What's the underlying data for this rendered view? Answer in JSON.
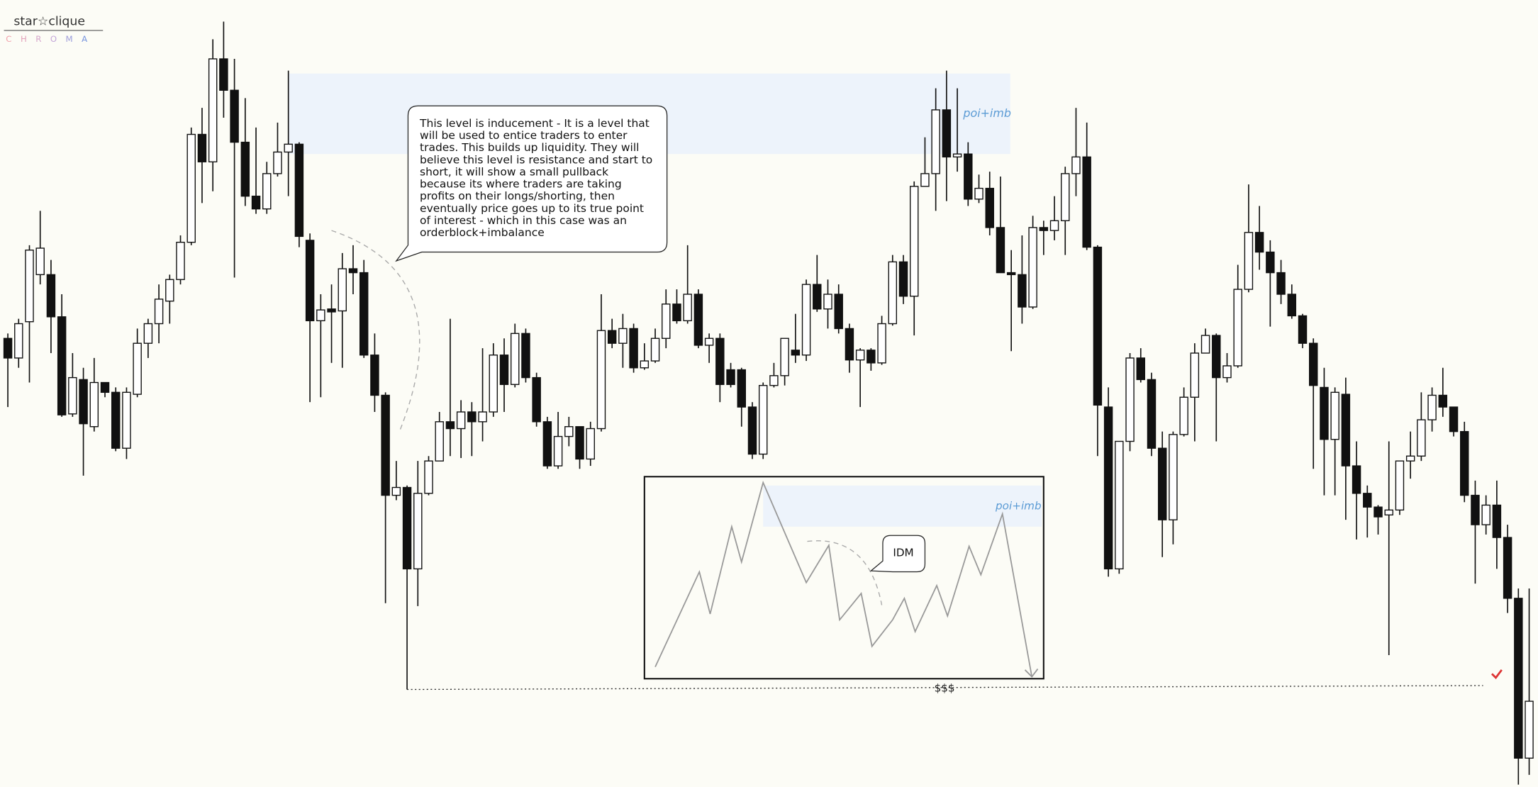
{
  "logo": {
    "name": "star☆clique",
    "sub": "CHROMA"
  },
  "chart_data": {
    "type": "candlestick",
    "ylim": [
      0,
      802
    ],
    "open": [
      457,
      437,
      474,
      522,
      522,
      479,
      380,
      415,
      367,
      412,
      402,
      345,
      400,
      452,
      472,
      495,
      517,
      555,
      665,
      637,
      742,
      710,
      657,
      602,
      589,
      625,
      647,
      655,
      557,
      475,
      487,
      485,
      528,
      524,
      440,
      399,
      297,
      305,
      222,
      299,
      332,
      372,
      365,
      382,
      372,
      382,
      440,
      410,
      462,
      417,
      372,
      327,
      357,
      367,
      334,
      365,
      465,
      452,
      467,
      427,
      434,
      457,
      492,
      475,
      502,
      450,
      457,
      425,
      425,
      387,
      339,
      409,
      419,
      445,
      440,
      512,
      487,
      502,
      467,
      435,
      445,
      432,
      472,
      535,
      500,
      612,
      625,
      690,
      642,
      645,
      599,
      610,
      570,
      524,
      522,
      489,
      570,
      567,
      577,
      625,
      642,
      550,
      387,
      222,
      352,
      437,
      415,
      345,
      272,
      359,
      397,
      442,
      460,
      417,
      429,
      507,
      565,
      545,
      524,
      502,
      480,
      452,
      407,
      354,
      400,
      327,
      299,
      285,
      277,
      282,
      332,
      337,
      374,
      399,
      387,
      362,
      297,
      267,
      287,
      254,
      192,
      29
    ],
    "high": [
      462,
      477,
      552,
      587,
      537,
      502,
      442,
      427,
      437,
      412,
      407,
      407,
      467,
      477,
      512,
      522,
      562,
      672,
      692,
      762,
      780,
      742,
      702,
      672,
      637,
      677,
      730,
      657,
      564,
      502,
      512,
      544,
      552,
      537,
      462,
      402,
      332,
      307,
      332,
      337,
      382,
      477,
      394,
      392,
      447,
      452,
      457,
      472,
      467,
      422,
      377,
      382,
      377,
      367,
      372,
      502,
      477,
      482,
      472,
      452,
      467,
      507,
      507,
      552,
      507,
      462,
      462,
      432,
      427,
      392,
      412,
      432,
      457,
      482,
      517,
      542,
      517,
      512,
      472,
      447,
      447,
      480,
      542,
      542,
      617,
      662,
      712,
      730,
      712,
      657,
      624,
      627,
      622,
      547,
      562,
      582,
      577,
      602,
      632,
      692,
      677,
      552,
      407,
      352,
      442,
      447,
      422,
      362,
      362,
      407,
      452,
      467,
      462,
      442,
      532,
      614,
      592,
      557,
      537,
      512,
      482,
      457,
      427,
      407,
      417,
      352,
      307,
      287,
      352,
      332,
      362,
      402,
      407,
      427,
      387,
      372,
      312,
      297,
      312,
      267,
      202,
      202
    ],
    "low": [
      387,
      427,
      412,
      512,
      442,
      377,
      377,
      317,
      362,
      397,
      342,
      334,
      397,
      437,
      452,
      472,
      512,
      552,
      595,
      607,
      682,
      519,
      592,
      584,
      584,
      622,
      602,
      550,
      392,
      397,
      432,
      427,
      502,
      437,
      382,
      187,
      292,
      99,
      184,
      297,
      332,
      337,
      335,
      337,
      352,
      377,
      382,
      407,
      412,
      367,
      324,
      324,
      347,
      324,
      327,
      362,
      447,
      427,
      422,
      425,
      432,
      447,
      472,
      472,
      447,
      432,
      392,
      407,
      367,
      334,
      334,
      407,
      409,
      432,
      434,
      484,
      467,
      462,
      422,
      387,
      424,
      430,
      470,
      492,
      460,
      612,
      587,
      597,
      627,
      592,
      595,
      562,
      524,
      444,
      472,
      487,
      542,
      557,
      542,
      602,
      547,
      337,
      214,
      217,
      342,
      412,
      337,
      234,
      247,
      357,
      352,
      442,
      352,
      412,
      427,
      504,
      527,
      469,
      492,
      477,
      447,
      324,
      297,
      297,
      272,
      252,
      254,
      257,
      134,
      277,
      314,
      332,
      362,
      377,
      357,
      290,
      207,
      257,
      222,
      177,
      2,
      12
    ],
    "close": [
      437,
      472,
      547,
      549,
      479,
      379,
      417,
      370,
      412,
      402,
      345,
      402,
      452,
      472,
      497,
      517,
      555,
      665,
      637,
      742,
      710,
      657,
      602,
      589,
      625,
      647,
      655,
      561,
      475,
      486,
      484,
      528,
      524,
      440,
      399,
      297,
      305,
      222,
      299,
      332,
      372,
      365,
      382,
      372,
      382,
      440,
      410,
      462,
      417,
      372,
      327,
      357,
      367,
      334,
      365,
      465,
      452,
      467,
      427,
      434,
      457,
      492,
      475,
      502,
      450,
      457,
      410,
      410,
      387,
      339,
      409,
      419,
      457,
      440,
      512,
      487,
      502,
      467,
      435,
      445,
      432,
      472,
      535,
      500,
      612,
      625,
      690,
      642,
      645,
      599,
      610,
      570,
      524,
      522,
      489,
      570,
      567,
      577,
      625,
      642,
      550,
      389,
      222,
      352,
      437,
      415,
      345,
      272,
      359,
      397,
      442,
      460,
      417,
      429,
      507,
      565,
      545,
      524,
      502,
      480,
      452,
      409,
      354,
      402,
      327,
      299,
      285,
      275,
      282,
      332,
      337,
      374,
      399,
      387,
      362,
      297,
      267,
      287,
      254,
      192,
      29,
      87
    ],
    "annotations": {
      "callout": [
        "This level is inducement - It is a level that",
        "will be used to entice traders to enter",
        "trades. This builds up liquidity. They will",
        "believe this level is resistance and start to",
        "short, it will show a small pullback",
        "because its where traders are taking",
        "profits on their longs/shorting, then",
        "eventually price goes up to its true point",
        "of interest - which in this case was an",
        "orderblock+imbalance"
      ],
      "zone_label": "poi+imb",
      "inset_zone_label": "poi+imb",
      "inset_idm": "IDM",
      "liquidity": "$$$"
    }
  }
}
